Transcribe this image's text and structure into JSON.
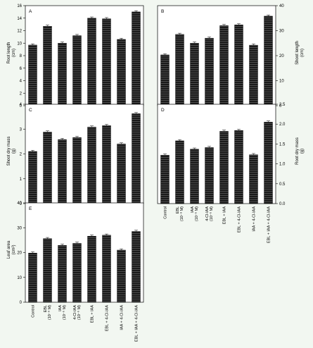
{
  "categories": [
    "Control",
    "EBL\n(10⁻⁸ M)",
    "IAA\n(10⁻⁶ M)",
    "4-Cl-IAA\n(10⁻⁶ M)",
    "EBL + IAA",
    "EBL + 4-Cl-IAA",
    "IAA + 4-Cl-IAA",
    "EBL + IAA + 4-Cl-IAA"
  ],
  "colors": {
    "bar": "#1a1a1a",
    "hatch": "#5a5a5a",
    "background": "#f2f7f1",
    "panel": "#ffffff"
  },
  "chart_data": [
    {
      "type": "bar",
      "panel": "A",
      "ylabel": "Root length\n(cm)",
      "ylim": [
        0,
        16
      ],
      "ticks": [
        0,
        2,
        4,
        6,
        8,
        10,
        12,
        14,
        16
      ],
      "axis_side": "left",
      "values": [
        9.7,
        12.7,
        10.0,
        11.2,
        14.0,
        13.9,
        10.6,
        15.0
      ]
    },
    {
      "type": "bar",
      "panel": "B",
      "ylabel": "Shoot length\n(cm)",
      "ylim": [
        0,
        40
      ],
      "ticks": [
        0,
        10,
        20,
        30,
        40
      ],
      "axis_side": "right",
      "values": [
        20.3,
        28.5,
        25.0,
        27.0,
        32.0,
        32.3,
        24.2,
        35.8
      ]
    },
    {
      "type": "bar",
      "panel": "C",
      "ylabel": "Shoot dry mass\n(g)",
      "ylim": [
        0,
        4
      ],
      "ticks": [
        0,
        1,
        2,
        3,
        4
      ],
      "axis_side": "left",
      "values": [
        2.1,
        2.88,
        2.58,
        2.66,
        3.08,
        3.14,
        2.4,
        3.62
      ]
    },
    {
      "type": "bar",
      "panel": "D",
      "ylabel": "Root dry mass\n(g)",
      "ylim": [
        0,
        2.5
      ],
      "ticks": [
        0.0,
        0.5,
        1.0,
        1.5,
        2.0,
        2.5
      ],
      "tick_labels": [
        "0.0",
        "0.5",
        "1.0",
        "1.5",
        "2.0",
        "2.5"
      ],
      "axis_side": "right",
      "values": [
        1.22,
        1.58,
        1.37,
        1.41,
        1.82,
        1.84,
        1.23,
        2.05
      ]
    },
    {
      "type": "bar",
      "panel": "E",
      "ylabel": "Leaf area\n(cm²)",
      "ylim": [
        0,
        40
      ],
      "ticks": [
        0,
        10,
        20,
        30,
        40
      ],
      "axis_side": "left",
      "values": [
        19.8,
        25.6,
        22.9,
        23.7,
        26.6,
        27.0,
        21.0,
        28.5
      ]
    }
  ]
}
